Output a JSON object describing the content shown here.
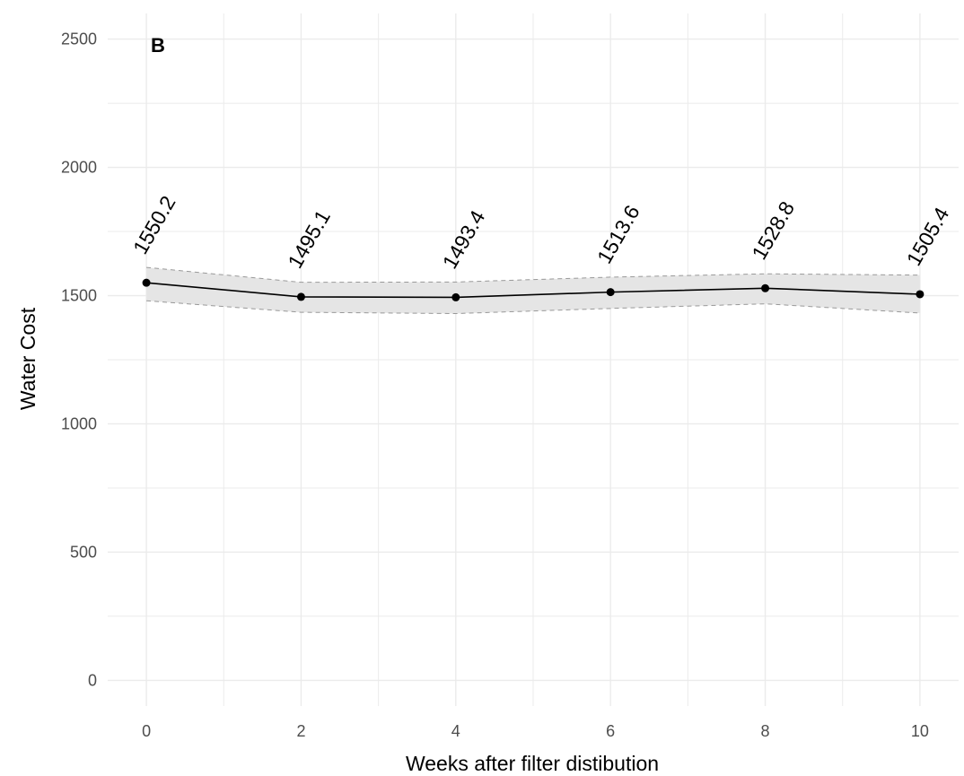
{
  "chart_data": {
    "type": "line",
    "panel_tag": "B",
    "title": "",
    "xlabel": "Weeks after filter distibution",
    "ylabel": "Water Cost",
    "x": [
      0,
      2,
      4,
      6,
      8,
      10
    ],
    "series": [
      {
        "values": [
          1550.2,
          1495.1,
          1493.4,
          1513.6,
          1528.8,
          1505.4
        ],
        "labels": [
          "1550.2",
          "1495.1",
          "1493.4",
          "1513.6",
          "1528.8",
          "1505.4"
        ],
        "ci_lower": [
          1480,
          1435,
          1430,
          1450,
          1468,
          1432
        ],
        "ci_upper": [
          1610,
          1552,
          1553,
          1572,
          1585,
          1580
        ],
        "line_color": "#000000",
        "point_color": "#000000",
        "ribbon_color": "#e5e5e5",
        "ribbon_border_color": "#999999"
      }
    ],
    "xlim": [
      -0.5,
      10.5
    ],
    "ylim": [
      -100,
      2600
    ],
    "x_ticks": [
      0,
      2,
      4,
      6,
      8,
      10
    ],
    "x_tick_labels": [
      "0",
      "2",
      "4",
      "6",
      "8",
      "10"
    ],
    "y_ticks": [
      0,
      500,
      1000,
      1500,
      2000,
      2500
    ],
    "y_tick_labels": [
      "0",
      "500",
      "1000",
      "1500",
      "2000",
      "2500"
    ],
    "grid": true,
    "grid_color": "#ebebeb",
    "legend": "none"
  }
}
